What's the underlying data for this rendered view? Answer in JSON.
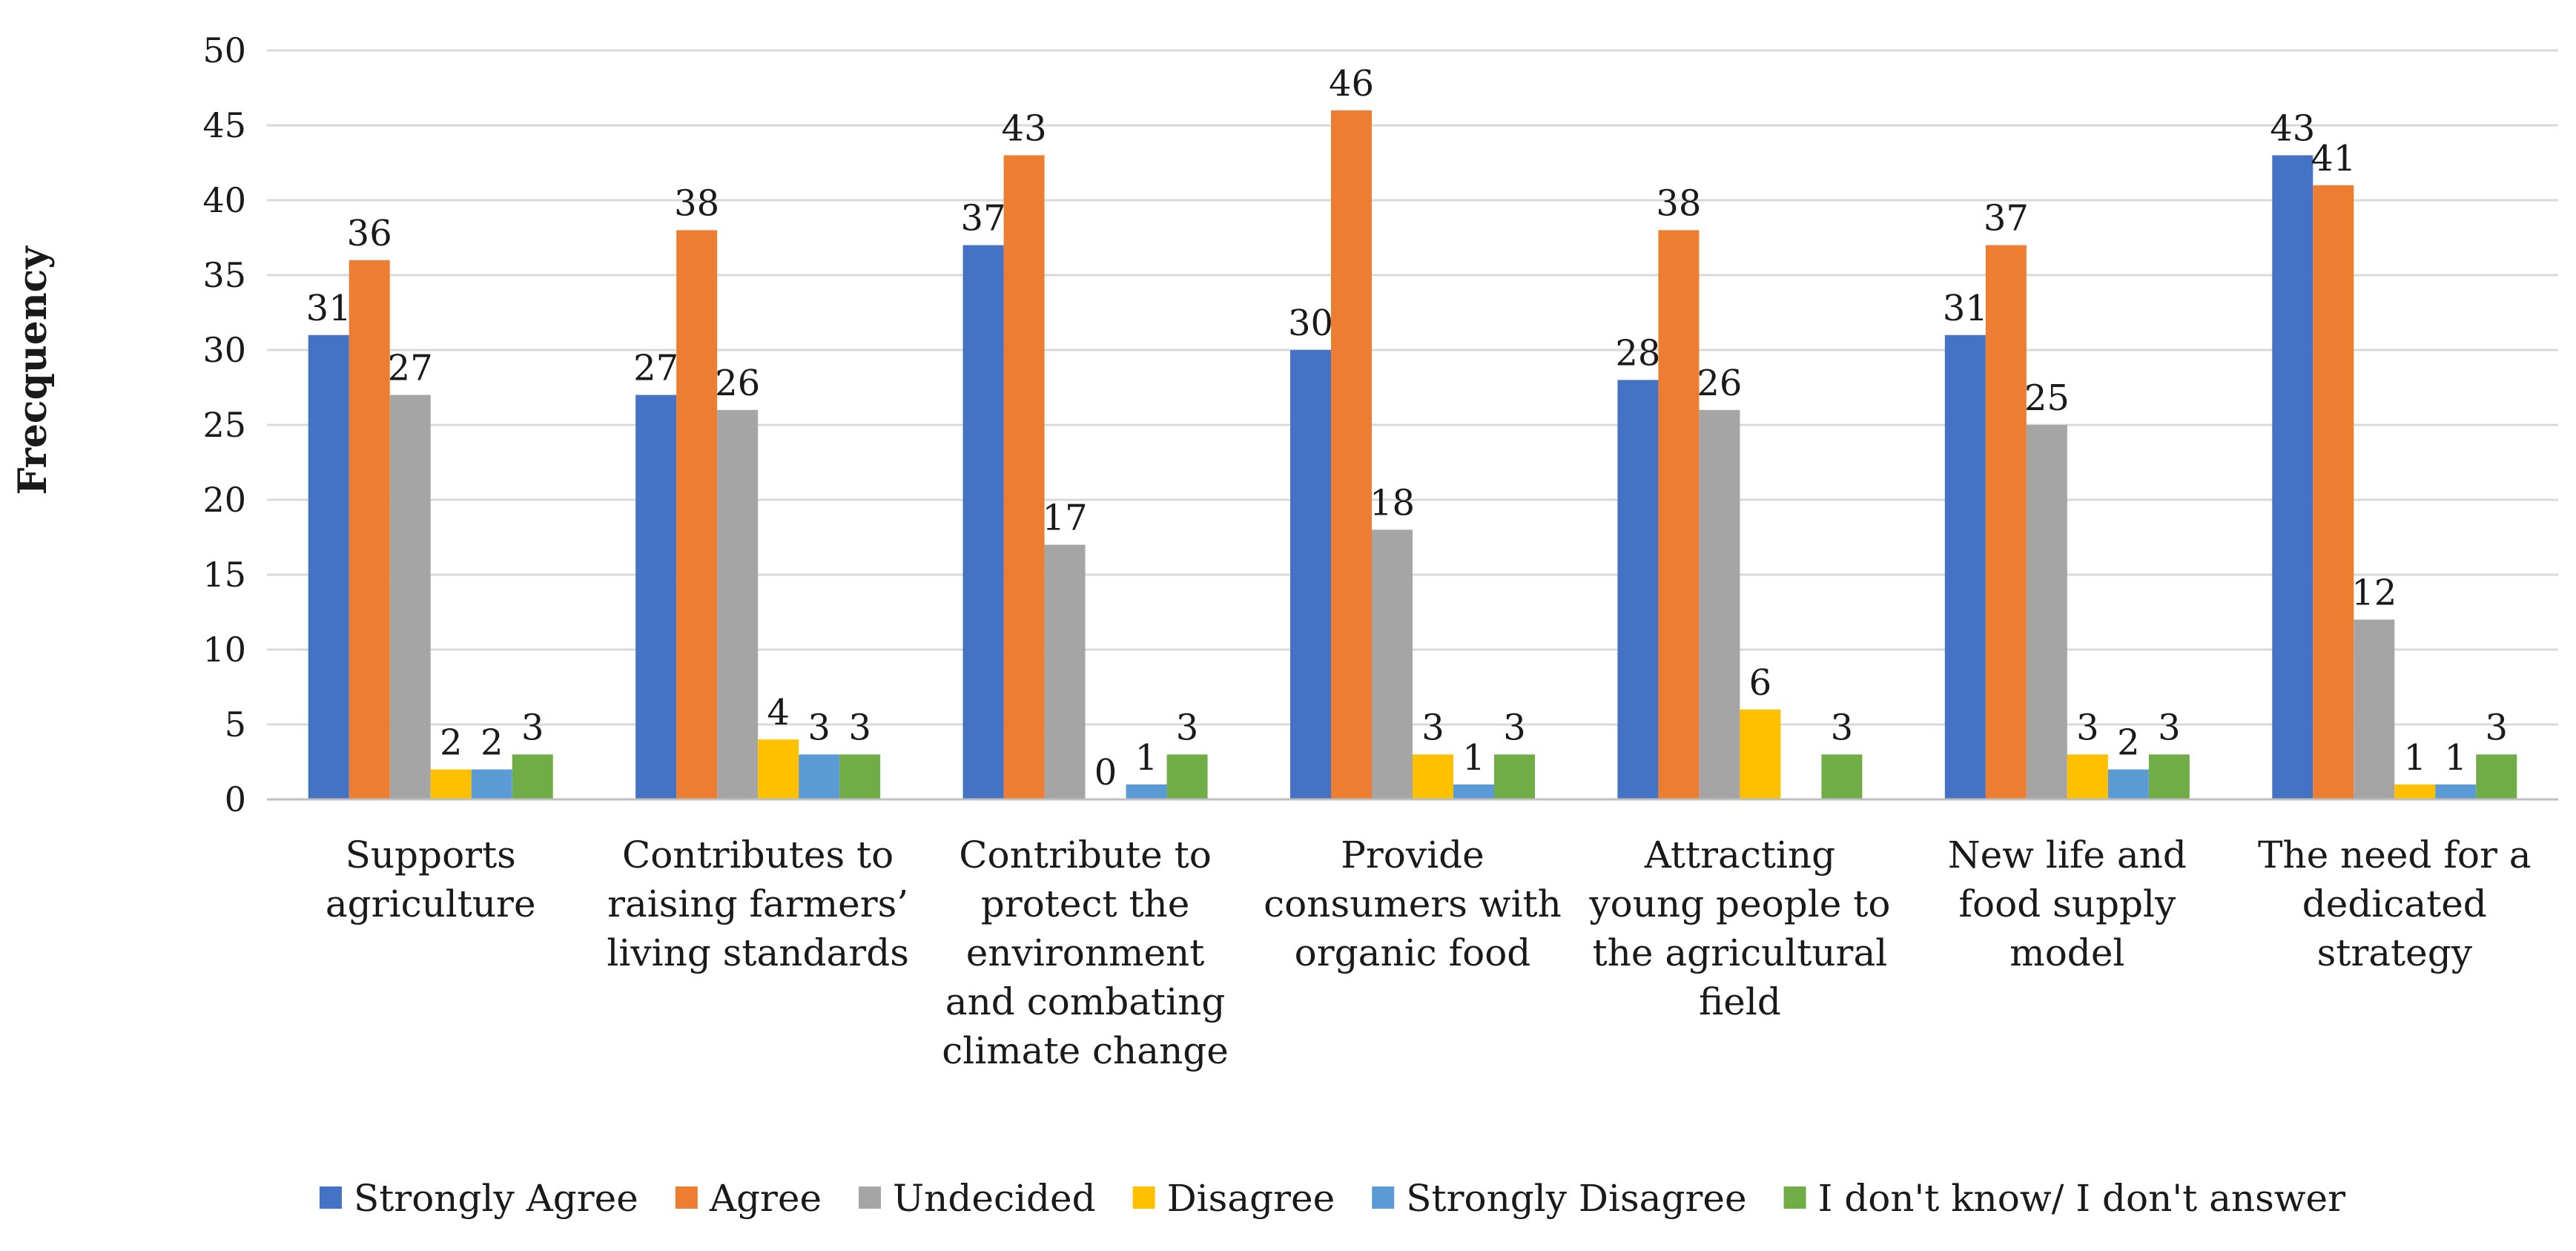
{
  "chart_data": {
    "type": "bar",
    "title": "",
    "xlabel": "",
    "ylabel": "Frecquency",
    "ylim": [
      0,
      50
    ],
    "ytick_step": 5,
    "grid": true,
    "legend_position": "bottom",
    "categories": [
      [
        "Supports",
        "agriculture"
      ],
      [
        "Contributes to",
        "raising farmers’",
        "living standards"
      ],
      [
        "Contribute to",
        "protect the",
        "environment",
        "and combating",
        "climate change"
      ],
      [
        "Provide",
        "consumers with",
        "organic food"
      ],
      [
        "Attracting",
        "young people to",
        "the agricultural",
        "field"
      ],
      [
        "New life and",
        "food supply",
        "model"
      ],
      [
        "The need for a",
        "dedicated",
        "strategy"
      ]
    ],
    "series": [
      {
        "name": "Strongly Agree",
        "color": "#4472C4",
        "values": [
          31,
          27,
          37,
          30,
          28,
          31,
          43
        ]
      },
      {
        "name": "Agree",
        "color": "#ED7D31",
        "values": [
          36,
          38,
          43,
          46,
          38,
          37,
          41
        ]
      },
      {
        "name": "Undecided",
        "color": "#A5A5A5",
        "values": [
          27,
          26,
          17,
          18,
          26,
          25,
          12
        ]
      },
      {
        "name": "Disagree",
        "color": "#FFC000",
        "values": [
          2,
          4,
          0,
          3,
          6,
          3,
          1
        ]
      },
      {
        "name": "Strongly Disagree",
        "color": "#5B9BD5",
        "values": [
          2,
          3,
          1,
          1,
          0,
          2,
          1
        ]
      },
      {
        "name": "I don't know/ I don't answer",
        "color": "#70AD47",
        "values": [
          3,
          3,
          3,
          3,
          3,
          3,
          3
        ]
      }
    ],
    "label_visibility": [
      [
        true,
        true,
        true,
        true,
        true,
        true,
        true
      ],
      [
        true,
        true,
        true,
        true,
        true,
        true,
        true
      ],
      [
        true,
        true,
        true,
        true,
        true,
        true,
        true
      ],
      [
        true,
        true,
        true,
        true,
        true,
        true,
        true
      ],
      [
        true,
        true,
        true,
        true,
        false,
        true,
        true
      ],
      [
        true,
        true,
        true,
        true,
        true,
        true,
        true
      ]
    ]
  }
}
